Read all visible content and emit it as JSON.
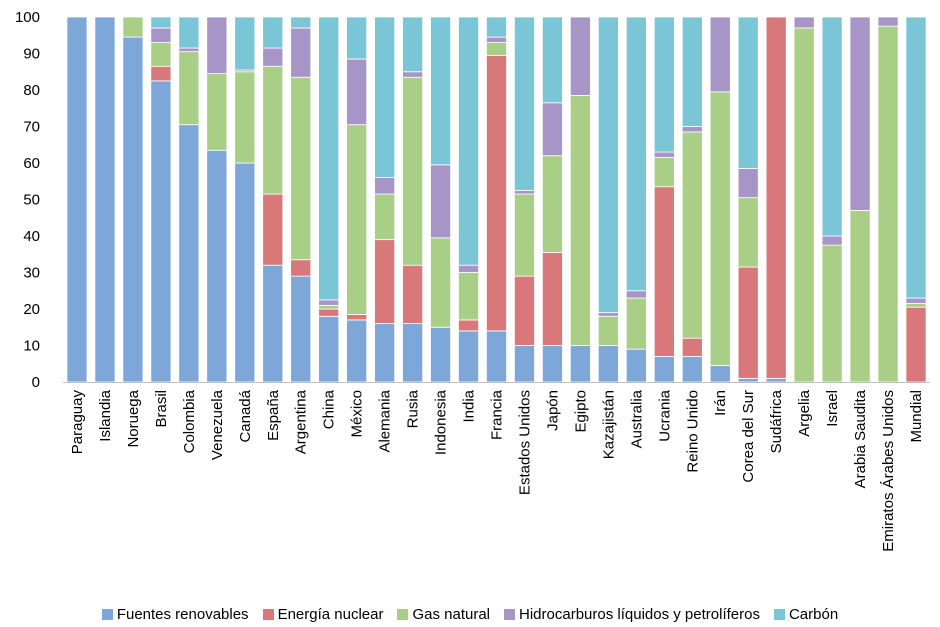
{
  "chart_data": {
    "type": "bar",
    "stacked": true,
    "ylim": [
      0,
      100
    ],
    "yticks": [
      0,
      10,
      20,
      30,
      40,
      50,
      60,
      70,
      80,
      90,
      100
    ],
    "grid": false,
    "legend_position": "bottom",
    "categories": [
      "Paraguay",
      "Islandia",
      "Noruega",
      "Brasil",
      "Colombia",
      "Venezuela",
      "Canadá",
      "España",
      "Argentina",
      "China",
      "México",
      "Alemania",
      "Rusia",
      "Indonesia",
      "India",
      "Francia",
      "Estados Unidos",
      "Japón",
      "Egipto",
      "Kazajistán",
      "Australia",
      "Ucrania",
      "Reino Unido",
      "Irán",
      "Corea del Sur",
      "Sudáfrica",
      "Argelia",
      "Israel",
      "Arabia Saudita",
      "Emiratos Árabes Unidos",
      "Mundial"
    ],
    "series": [
      {
        "name": "Fuentes renovables",
        "color": "#7da7d9",
        "values": [
          100,
          100,
          94.5,
          82.5,
          70.5,
          63.5,
          60,
          32,
          29,
          18,
          17,
          16,
          16,
          15,
          14,
          14,
          10,
          10,
          10,
          10,
          9,
          7,
          7,
          4.5,
          1,
          1,
          0,
          0,
          0,
          0,
          0
        ]
      },
      {
        "name": "Energía nuclear",
        "color": "#d9787a",
        "values": [
          0,
          0,
          0,
          4,
          0,
          0,
          0,
          19.5,
          4.5,
          2,
          1.5,
          23,
          16,
          0,
          3,
          75.5,
          19,
          25.5,
          0,
          0,
          0,
          46.5,
          5,
          0,
          30.5,
          99,
          0,
          0,
          0,
          0,
          20.5
        ]
      },
      {
        "name": "Gas natural",
        "color": "#a9cf86",
        "values": [
          0,
          0,
          5.5,
          6.5,
          20,
          21,
          25,
          35,
          50,
          1,
          52,
          12.5,
          51.5,
          24.5,
          13,
          3.5,
          22.5,
          26.5,
          68.5,
          8,
          14,
          8,
          56.5,
          75,
          19,
          0,
          97,
          37.5,
          47,
          97.5,
          1
        ]
      },
      {
        "name": "Hidrocarburos líquidos y petrolíferos",
        "color": "#a795c8",
        "values": [
          0,
          0,
          0,
          4,
          1,
          15.5,
          0.5,
          5,
          13.5,
          1.5,
          18,
          4.5,
          1.5,
          20,
          2,
          1.5,
          1,
          14.5,
          21.5,
          1,
          2,
          1.5,
          1.5,
          20.5,
          8,
          0,
          3,
          2.5,
          53,
          2.5,
          1.5
        ]
      },
      {
        "name": "Carbón",
        "color": "#7ac5d6",
        "values": [
          0,
          0,
          0,
          3,
          8.5,
          0,
          14.5,
          8.5,
          3,
          77.5,
          11.5,
          44,
          15,
          40.5,
          68,
          5.5,
          47.5,
          23.5,
          0,
          81,
          75,
          37,
          30,
          0,
          41.5,
          0,
          0,
          60,
          0,
          0,
          77
        ]
      }
    ]
  }
}
